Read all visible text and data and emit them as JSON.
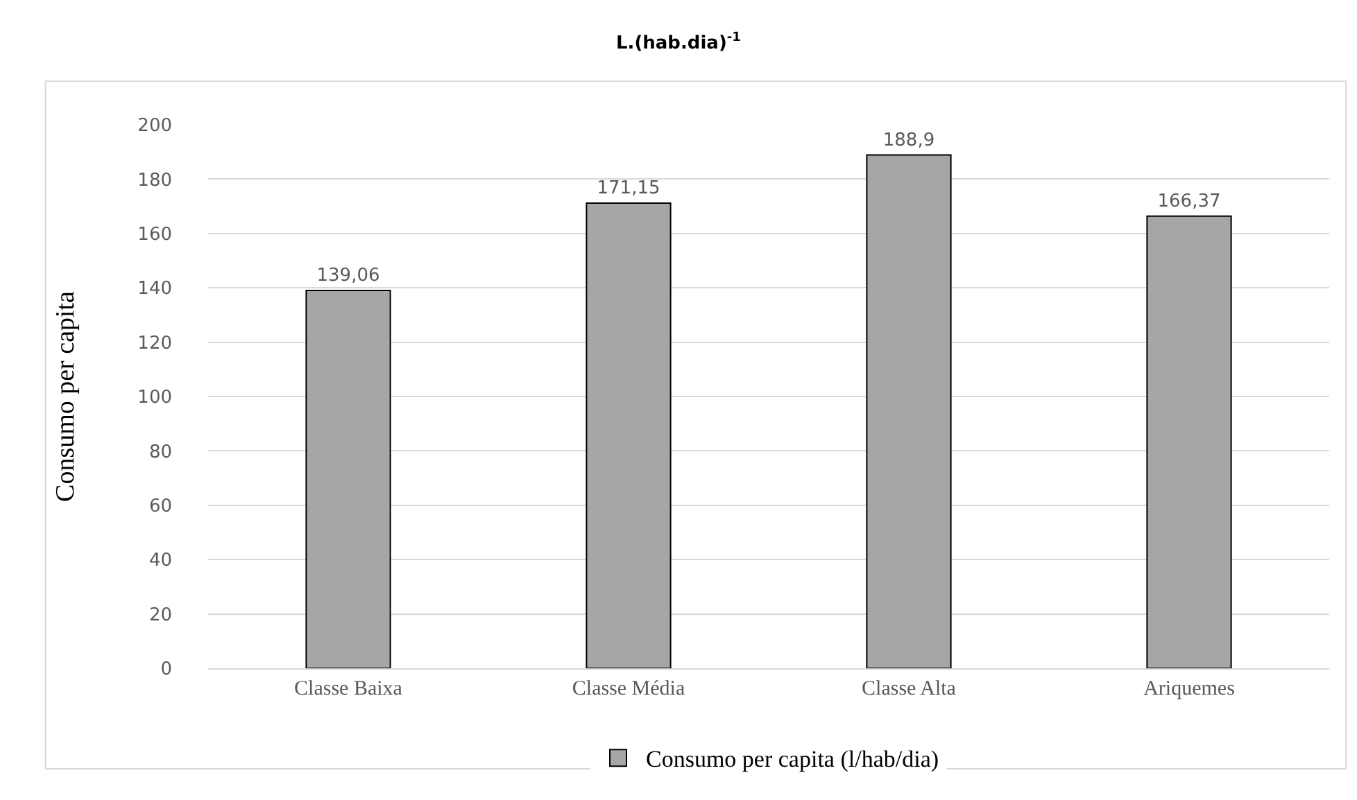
{
  "chart_data": {
    "type": "bar",
    "title": "L.(hab.dia)$^{-1}$",
    "ylabel": "Consumo per capita",
    "categories": [
      "Classe Baixa",
      "Classe Média",
      "Classe Alta",
      "Ariquemes"
    ],
    "series": [
      {
        "name": "Consumo per capita (l/hab/dia)",
        "color": "#a6a6a6",
        "values": [
          139.06,
          171.15,
          188.9,
          166.37
        ],
        "value_labels": [
          "139,06",
          "171,15",
          "188,9",
          "166,37"
        ]
      }
    ],
    "ylim": [
      0,
      200
    ],
    "yticks": [
      0,
      20,
      40,
      60,
      80,
      100,
      120,
      140,
      160,
      180,
      200
    ],
    "grid": "y",
    "legend": "bottom"
  }
}
